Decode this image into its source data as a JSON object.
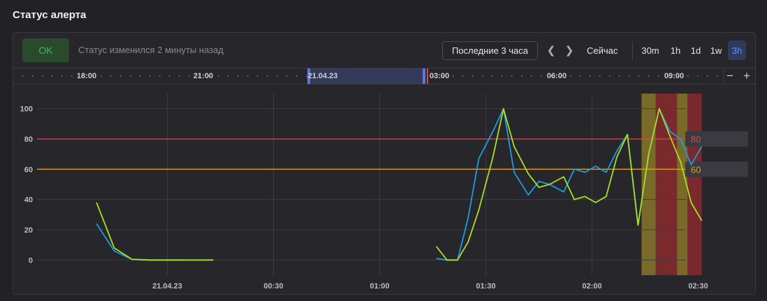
{
  "header": {
    "title": "Статус алерта"
  },
  "toolbar": {
    "status": "OK",
    "status_text": "Статус изменился 2 минуты назад",
    "range_label": "Последние 3 часа",
    "prev_icon": "chevron-left-icon",
    "next_icon": "chevron-right-icon",
    "now_label": "Сейчас",
    "zoom": [
      "30m",
      "1h",
      "1d",
      "1w",
      "3h"
    ],
    "active_zoom": "3h"
  },
  "timeline": {
    "labels": [
      "18:00",
      "21:00",
      "21.04.23",
      "03:00",
      "06:00",
      "09:00"
    ],
    "minus": "−",
    "plus": "+"
  },
  "chart_data": {
    "type": "line",
    "x_tick_labels": [
      "21.04.23",
      "00:30",
      "01:00",
      "01:30",
      "02:00",
      "02:30"
    ],
    "y_ticks": [
      0,
      20,
      40,
      60,
      80,
      100
    ],
    "ylim": [
      -10,
      110
    ],
    "grid": true,
    "colors": {
      "blue": "#1e9be0",
      "green": "#a6e01e",
      "crit": "#e04848",
      "warn": "#e0a01e"
    },
    "thresholds": [
      {
        "label": "80",
        "value": 80,
        "color": "#e04848"
      },
      {
        "label": "60",
        "value": 60,
        "color": "#e0a01e"
      }
    ],
    "series": [
      {
        "color": "#1e9be0",
        "segments": [
          [
            [
              "23:40",
              24
            ],
            [
              "23:45",
              6
            ],
            [
              "23:50",
              0.5
            ],
            [
              "23:55",
              0
            ],
            [
              "00:00",
              0
            ],
            [
              "00:05",
              0
            ]
          ],
          [
            [
              "01:16",
              1
            ],
            [
              "01:19",
              0
            ],
            [
              "01:22",
              0
            ],
            [
              "01:25",
              28
            ],
            [
              "01:28",
              67
            ],
            [
              "01:32",
              85
            ],
            [
              "01:35",
              100
            ],
            [
              "01:38",
              58
            ],
            [
              "01:42",
              43
            ],
            [
              "01:45",
              52
            ],
            [
              "01:48",
              50
            ],
            [
              "01:52",
              45
            ],
            [
              "01:55",
              60
            ],
            [
              "01:58",
              58
            ],
            [
              "02:01",
              62
            ],
            [
              "02:04",
              58
            ],
            [
              "02:07",
              72
            ],
            [
              "02:10",
              83
            ],
            [
              "02:13",
              23
            ],
            [
              "02:16",
              70
            ],
            [
              "02:19",
              100
            ],
            [
              "02:22",
              85
            ],
            [
              "02:25",
              80
            ],
            [
              "02:28",
              63
            ],
            [
              "02:31",
              75
            ]
          ]
        ]
      },
      {
        "color": "#a6e01e",
        "segments": [
          [
            [
              "23:40",
              38
            ],
            [
              "23:45",
              8
            ],
            [
              "23:50",
              0.5
            ],
            [
              "23:55",
              0
            ],
            [
              "00:00",
              0
            ],
            [
              "00:05",
              0
            ],
            [
              "00:10",
              0
            ],
            [
              "00:13",
              0
            ]
          ],
          [
            [
              "01:16",
              9
            ],
            [
              "01:19",
              0
            ],
            [
              "01:22",
              0
            ],
            [
              "01:25",
              12
            ],
            [
              "01:28",
              33
            ],
            [
              "01:32",
              68
            ],
            [
              "01:35",
              100
            ],
            [
              "01:38",
              75
            ],
            [
              "01:42",
              57
            ],
            [
              "01:45",
              48
            ],
            [
              "01:48",
              50
            ],
            [
              "01:52",
              55
            ],
            [
              "01:55",
              40
            ],
            [
              "01:58",
              42
            ],
            [
              "02:01",
              38
            ],
            [
              "02:04",
              42
            ],
            [
              "02:07",
              68
            ],
            [
              "02:10",
              83
            ],
            [
              "02:13",
              23
            ],
            [
              "02:16",
              70
            ],
            [
              "02:19",
              100
            ],
            [
              "02:22",
              82
            ],
            [
              "02:25",
              65
            ],
            [
              "02:28",
              38
            ],
            [
              "02:31",
              26
            ]
          ]
        ]
      }
    ],
    "alert_bands": [
      {
        "from": "02:14",
        "to": "02:18",
        "level": "warn"
      },
      {
        "from": "02:18",
        "to": "02:24",
        "level": "crit"
      },
      {
        "from": "02:24",
        "to": "02:27",
        "level": "warn"
      },
      {
        "from": "02:27",
        "to": "02:31",
        "level": "crit"
      }
    ]
  }
}
